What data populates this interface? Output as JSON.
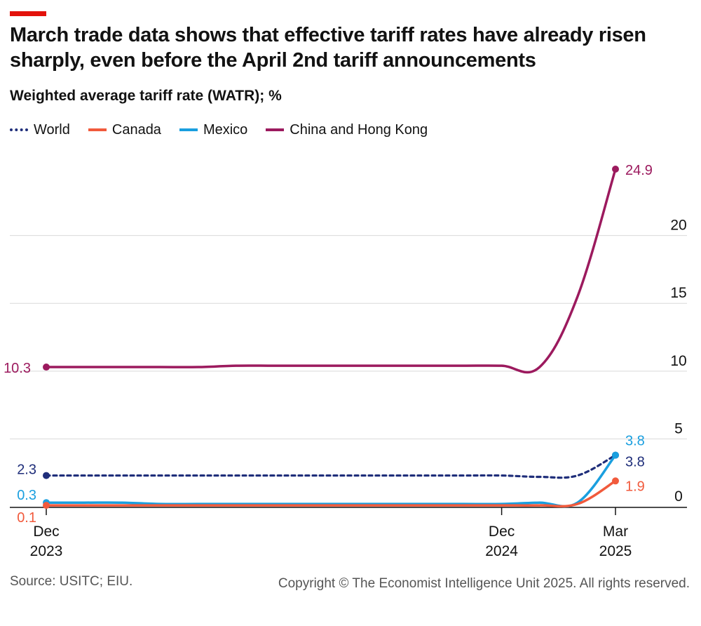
{
  "colors": {
    "accent_bar": "#e3120b",
    "world": "#1f2e7a",
    "canada": "#f15a3c",
    "mexico": "#1a9fdf",
    "china": "#9c1a5e",
    "grid": "#d9d9d9",
    "axis": "#121212"
  },
  "chart_data": {
    "type": "line",
    "title": "March trade data shows that effective tariff rates have already risen sharply, even before the April 2nd tariff announcements",
    "subtitle": "Weighted average tariff rate (WATR); %",
    "ylim": [
      0,
      25
    ],
    "yticks": [
      0,
      5,
      10,
      15,
      20
    ],
    "ytick_labels": [
      "0",
      "5",
      "10",
      "15",
      "20"
    ],
    "xlim": [
      0,
      16
    ],
    "xticks": [
      {
        "x": 0,
        "line1": "Dec",
        "line2": "2023"
      },
      {
        "x": 12,
        "line1": "Dec",
        "line2": "2024"
      },
      {
        "x": 15,
        "line1": "Mar",
        "line2": "2025"
      }
    ],
    "legend_position": "top-left",
    "series": [
      {
        "key": "china",
        "name": "China and Hong Kong",
        "style": "solid",
        "x": [
          0,
          1,
          2,
          3,
          4,
          5,
          6,
          7,
          8,
          9,
          10,
          11,
          12,
          13,
          14,
          15
        ],
        "values": [
          10.3,
          10.3,
          10.3,
          10.3,
          10.3,
          10.4,
          10.4,
          10.4,
          10.4,
          10.4,
          10.4,
          10.4,
          10.4,
          10.3,
          15.5,
          24.9
        ],
        "start_label": "10.3",
        "end_label": "24.9"
      },
      {
        "key": "world",
        "name": "World",
        "style": "dotted",
        "x": [
          0,
          1,
          2,
          3,
          4,
          5,
          6,
          7,
          8,
          9,
          10,
          11,
          12,
          13,
          14,
          15
        ],
        "values": [
          2.3,
          2.3,
          2.3,
          2.3,
          2.3,
          2.3,
          2.3,
          2.3,
          2.3,
          2.3,
          2.3,
          2.3,
          2.3,
          2.2,
          2.3,
          3.8
        ],
        "start_label": "2.3",
        "end_label": "3.8"
      },
      {
        "key": "mexico",
        "name": "Mexico",
        "style": "solid",
        "x": [
          0,
          1,
          2,
          3,
          4,
          5,
          6,
          7,
          8,
          9,
          10,
          11,
          12,
          13,
          14,
          15
        ],
        "values": [
          0.3,
          0.3,
          0.3,
          0.2,
          0.2,
          0.2,
          0.2,
          0.2,
          0.2,
          0.2,
          0.2,
          0.2,
          0.2,
          0.3,
          0.3,
          3.8
        ],
        "start_label": "0.3",
        "end_label": "3.8"
      },
      {
        "key": "canada",
        "name": "Canada",
        "style": "solid",
        "x": [
          0,
          1,
          2,
          3,
          4,
          5,
          6,
          7,
          8,
          9,
          10,
          11,
          12,
          13,
          14,
          15
        ],
        "values": [
          0.1,
          0.1,
          0.1,
          0.1,
          0.1,
          0.1,
          0.1,
          0.1,
          0.1,
          0.1,
          0.1,
          0.1,
          0.1,
          0.1,
          0.2,
          1.9
        ],
        "start_label": "0.1",
        "end_label": "1.9"
      }
    ],
    "legend": [
      {
        "key": "world",
        "label": "World"
      },
      {
        "key": "canada",
        "label": "Canada"
      },
      {
        "key": "mexico",
        "label": "Mexico"
      },
      {
        "key": "china",
        "label": "China and Hong Kong"
      }
    ]
  },
  "footer": {
    "source": "Source: USITC; EIU.",
    "copyright": "Copyright © The Economist Intelligence Unit 2025. All rights reserved."
  }
}
